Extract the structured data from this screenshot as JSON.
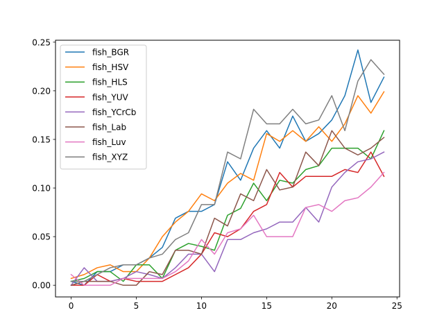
{
  "chart_data": {
    "type": "line",
    "title": "",
    "xlabel": "",
    "ylabel": "",
    "xlim": [
      -1.2,
      25.2
    ],
    "ylim": [
      -0.012,
      0.252
    ],
    "grid": false,
    "legend_position": "top-left",
    "x_ticks": [
      0,
      5,
      10,
      15,
      20,
      25
    ],
    "x_tick_labels": [
      "0",
      "5",
      "10",
      "15",
      "20",
      "25"
    ],
    "y_ticks": [
      0.0,
      0.05,
      0.1,
      0.15,
      0.2,
      0.25
    ],
    "y_tick_labels": [
      "0.00",
      "0.05",
      "0.10",
      "0.15",
      "0.20",
      "0.25"
    ],
    "x": [
      0,
      1,
      2,
      3,
      4,
      5,
      6,
      7,
      8,
      9,
      10,
      11,
      12,
      13,
      14,
      15,
      16,
      17,
      18,
      19,
      20,
      21,
      22,
      23,
      24
    ],
    "series": [
      {
        "name": "fish_BGR",
        "color": "#1f77b4",
        "values": [
          0.004,
          0.0,
          0.014,
          0.014,
          0.021,
          0.021,
          0.028,
          0.039,
          0.069,
          0.076,
          0.076,
          0.083,
          0.127,
          0.108,
          0.141,
          0.159,
          0.141,
          0.174,
          0.148,
          0.156,
          0.17,
          0.195,
          0.242,
          0.188,
          0.214
        ]
      },
      {
        "name": "fish_HSV",
        "color": "#ff7f0e",
        "values": [
          0.007,
          0.011,
          0.018,
          0.021,
          0.014,
          0.014,
          0.028,
          0.05,
          0.065,
          0.076,
          0.094,
          0.087,
          0.105,
          0.115,
          0.108,
          0.156,
          0.148,
          0.159,
          0.148,
          0.163,
          0.148,
          0.166,
          0.195,
          0.177,
          0.199
        ]
      },
      {
        "name": "fish_HLS",
        "color": "#2ca02c",
        "values": [
          0.004,
          0.007,
          0.014,
          0.014,
          0.004,
          0.021,
          0.021,
          0.007,
          0.036,
          0.043,
          0.04,
          0.036,
          0.072,
          0.079,
          0.105,
          0.087,
          0.108,
          0.105,
          0.119,
          0.123,
          0.141,
          0.141,
          0.141,
          0.13,
          0.159
        ]
      },
      {
        "name": "fish_YUV",
        "color": "#d62728",
        "values": [
          0.0,
          0.0,
          0.011,
          0.004,
          0.007,
          0.004,
          0.004,
          0.004,
          0.011,
          0.018,
          0.032,
          0.054,
          0.05,
          0.058,
          0.076,
          0.083,
          0.116,
          0.101,
          0.112,
          0.112,
          0.112,
          0.119,
          0.116,
          0.137,
          0.112
        ]
      },
      {
        "name": "fish_YCrCb",
        "color": "#9467bd",
        "values": [
          0.0,
          0.018,
          0.004,
          0.004,
          0.007,
          0.014,
          0.011,
          0.007,
          0.018,
          0.032,
          0.032,
          0.014,
          0.047,
          0.047,
          0.054,
          0.058,
          0.065,
          0.065,
          0.08,
          0.065,
          0.101,
          0.116,
          0.127,
          0.13,
          0.137
        ]
      },
      {
        "name": "fish_Lab",
        "color": "#8c564b",
        "values": [
          0.0,
          0.004,
          0.004,
          0.004,
          0.0,
          0.0,
          0.014,
          0.011,
          0.036,
          0.036,
          0.032,
          0.069,
          0.061,
          0.094,
          0.087,
          0.119,
          0.098,
          0.101,
          0.137,
          0.123,
          0.159,
          0.141,
          0.134,
          0.141,
          0.152
        ]
      },
      {
        "name": "fish_Luv",
        "color": "#e377c2",
        "values": [
          0.011,
          0.0,
          0.0,
          0.0,
          0.007,
          0.007,
          0.007,
          0.007,
          0.014,
          0.025,
          0.047,
          0.032,
          0.054,
          0.058,
          0.072,
          0.05,
          0.05,
          0.05,
          0.08,
          0.083,
          0.076,
          0.087,
          0.09,
          0.101,
          0.116
        ]
      },
      {
        "name": "fish_XYZ",
        "color": "#7f7f7f",
        "values": [
          0.004,
          0.004,
          0.011,
          0.018,
          0.021,
          0.021,
          0.028,
          0.032,
          0.047,
          0.054,
          0.083,
          0.083,
          0.137,
          0.13,
          0.181,
          0.166,
          0.166,
          0.181,
          0.166,
          0.17,
          0.195,
          0.159,
          0.21,
          0.232,
          0.217
        ]
      }
    ]
  }
}
